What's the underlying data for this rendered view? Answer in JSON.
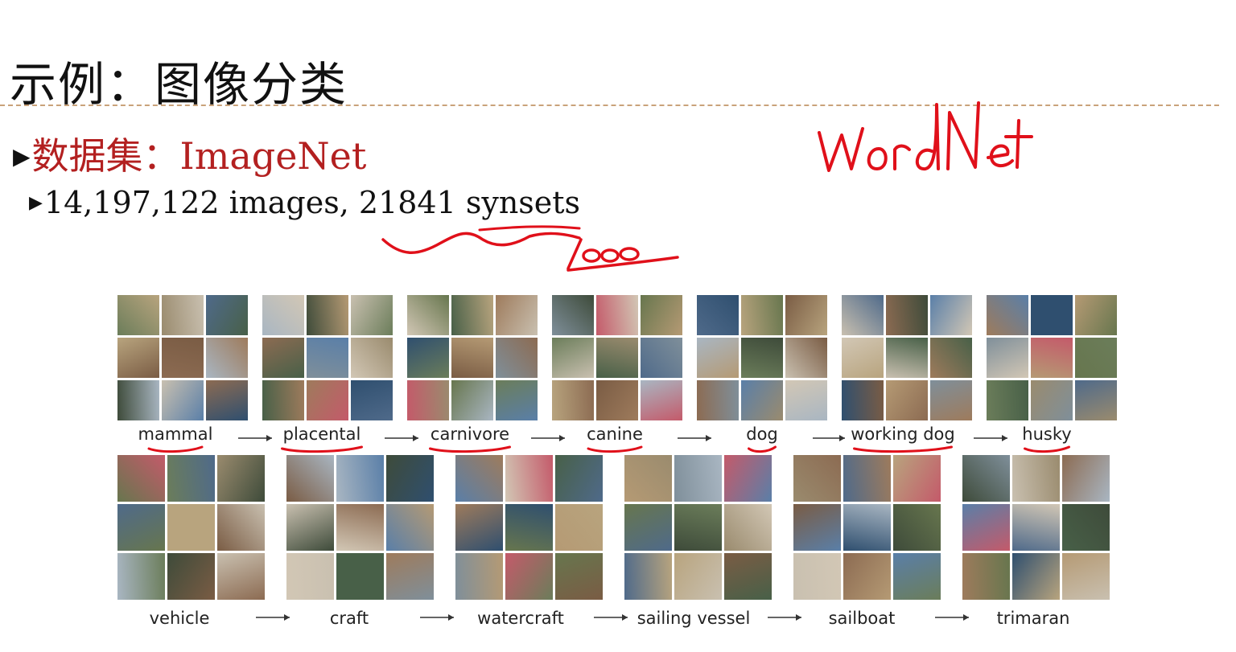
{
  "slide": {
    "title": "示例：图像分类",
    "dataset_line": "数据集：ImageNet",
    "stats_line": "14,197,122 images, 21841 synsets",
    "annotations": [
      "WordNet",
      "1000"
    ]
  },
  "hierarchy_rows": [
    {
      "labels": [
        "mammal",
        "placental",
        "carnivore",
        "canine",
        "dog",
        "working dog",
        "husky"
      ],
      "underlined": [
        "mammal",
        "placental",
        "carnivore",
        "canine",
        "dog",
        "working dog",
        "husky"
      ]
    },
    {
      "labels": [
        "vehicle",
        "craft",
        "watercraft",
        "sailing vessel",
        "sailboat",
        "trimaran"
      ]
    }
  ],
  "colors": {
    "title": "#111111",
    "accent_red": "#b32020",
    "ink_red": "#e0101a",
    "divider": "#c9a27a"
  }
}
